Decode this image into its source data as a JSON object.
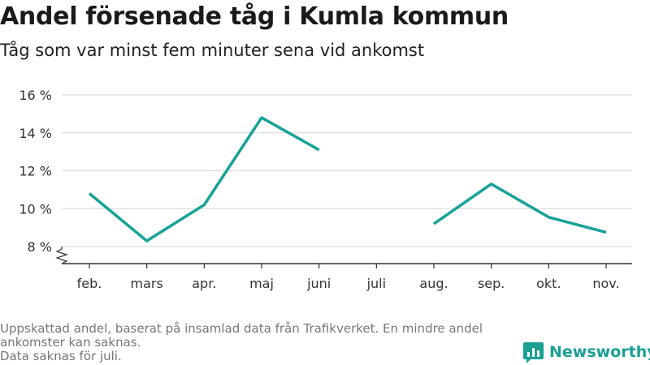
{
  "chart_data": {
    "type": "line",
    "title": "Andel försenade tåg i Kumla kommun",
    "subtitle": "Tåg som var minst fem minuter sena vid ankomst",
    "categories": [
      "feb.",
      "mars",
      "apr.",
      "maj",
      "juni",
      "juli",
      "aug.",
      "sep.",
      "okt.",
      "nov."
    ],
    "series": [
      {
        "values": [
          10.8,
          8.3,
          10.2,
          14.8,
          13.1,
          null,
          9.2,
          11.3,
          9.55,
          8.75
        ],
        "color": "#16a396"
      }
    ],
    "ylim": [
      7.5,
      16
    ],
    "yticks": [
      8,
      10,
      12,
      14,
      16
    ],
    "y_tick_suffix": " %",
    "axis_break": true,
    "grid": true,
    "legend": "none"
  },
  "footer": {
    "note_line1": "Uppskattad andel, baserat på insamlad data från Trafikverket. En mindre andel",
    "note_line2": "ankomster kan saknas.",
    "note_line3": "Data saknas för juli."
  },
  "brand": {
    "name": "Newsworthy",
    "color": "#19a093",
    "icon": "newsworthy-logo-icon"
  }
}
